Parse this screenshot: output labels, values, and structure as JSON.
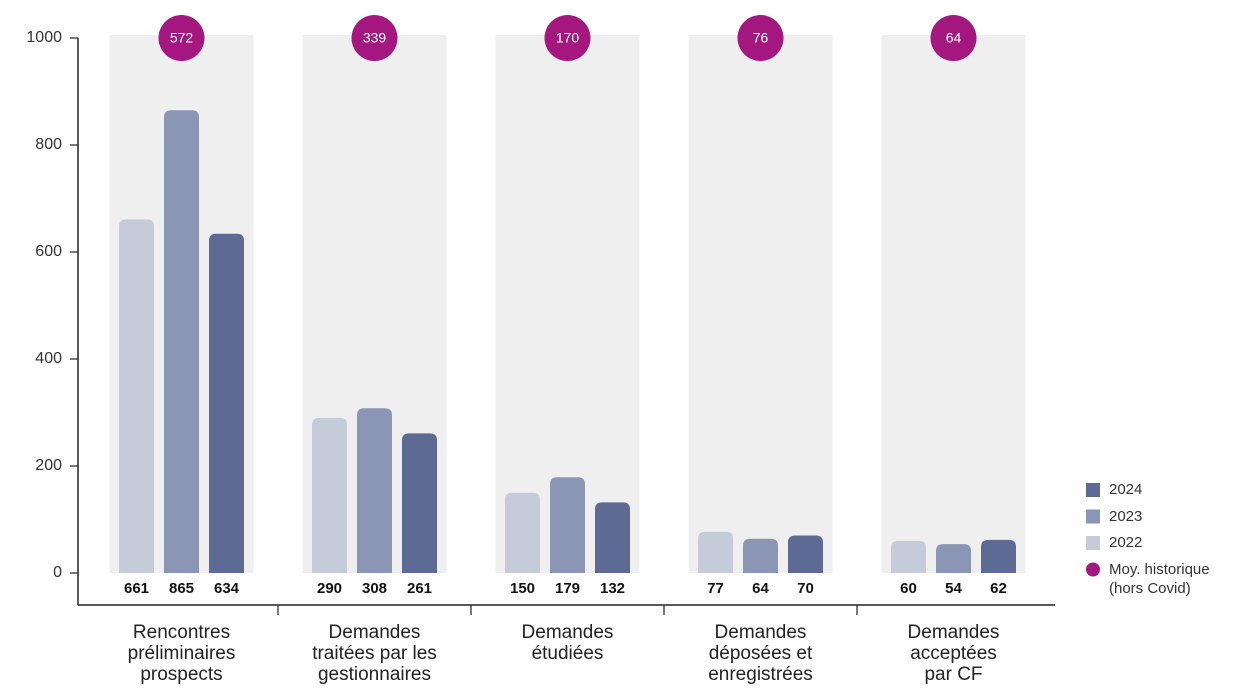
{
  "chart_data": {
    "type": "bar",
    "categories": [
      [
        "Rencontres",
        "préliminaires",
        "prospects"
      ],
      [
        "Demandes",
        "traitées par les",
        "gestionnaires"
      ],
      [
        "Demandes",
        "étudiées"
      ],
      [
        "Demandes",
        "déposées et",
        "enregistrées"
      ],
      [
        "Demandes",
        "acceptées",
        "par CF"
      ]
    ],
    "series": [
      {
        "name": "2022",
        "color": "#c5cbd8",
        "values": [
          661,
          290,
          150,
          77,
          60
        ]
      },
      {
        "name": "2023",
        "color": "#8a96b4",
        "values": [
          865,
          308,
          179,
          64,
          54
        ]
      },
      {
        "name": "2024",
        "color": "#5c6a94",
        "values": [
          634,
          261,
          132,
          70,
          62
        ]
      },
      {
        "name": "Moy. historique (hors Covid)",
        "color": "#a3177f",
        "marker": "circle",
        "values": [
          572,
          339,
          170,
          76,
          64
        ]
      }
    ],
    "ylim": [
      0,
      1000
    ],
    "yticks": [
      0,
      200,
      400,
      600,
      800,
      1000
    ],
    "band_color": "#efefef",
    "legend": "right"
  }
}
